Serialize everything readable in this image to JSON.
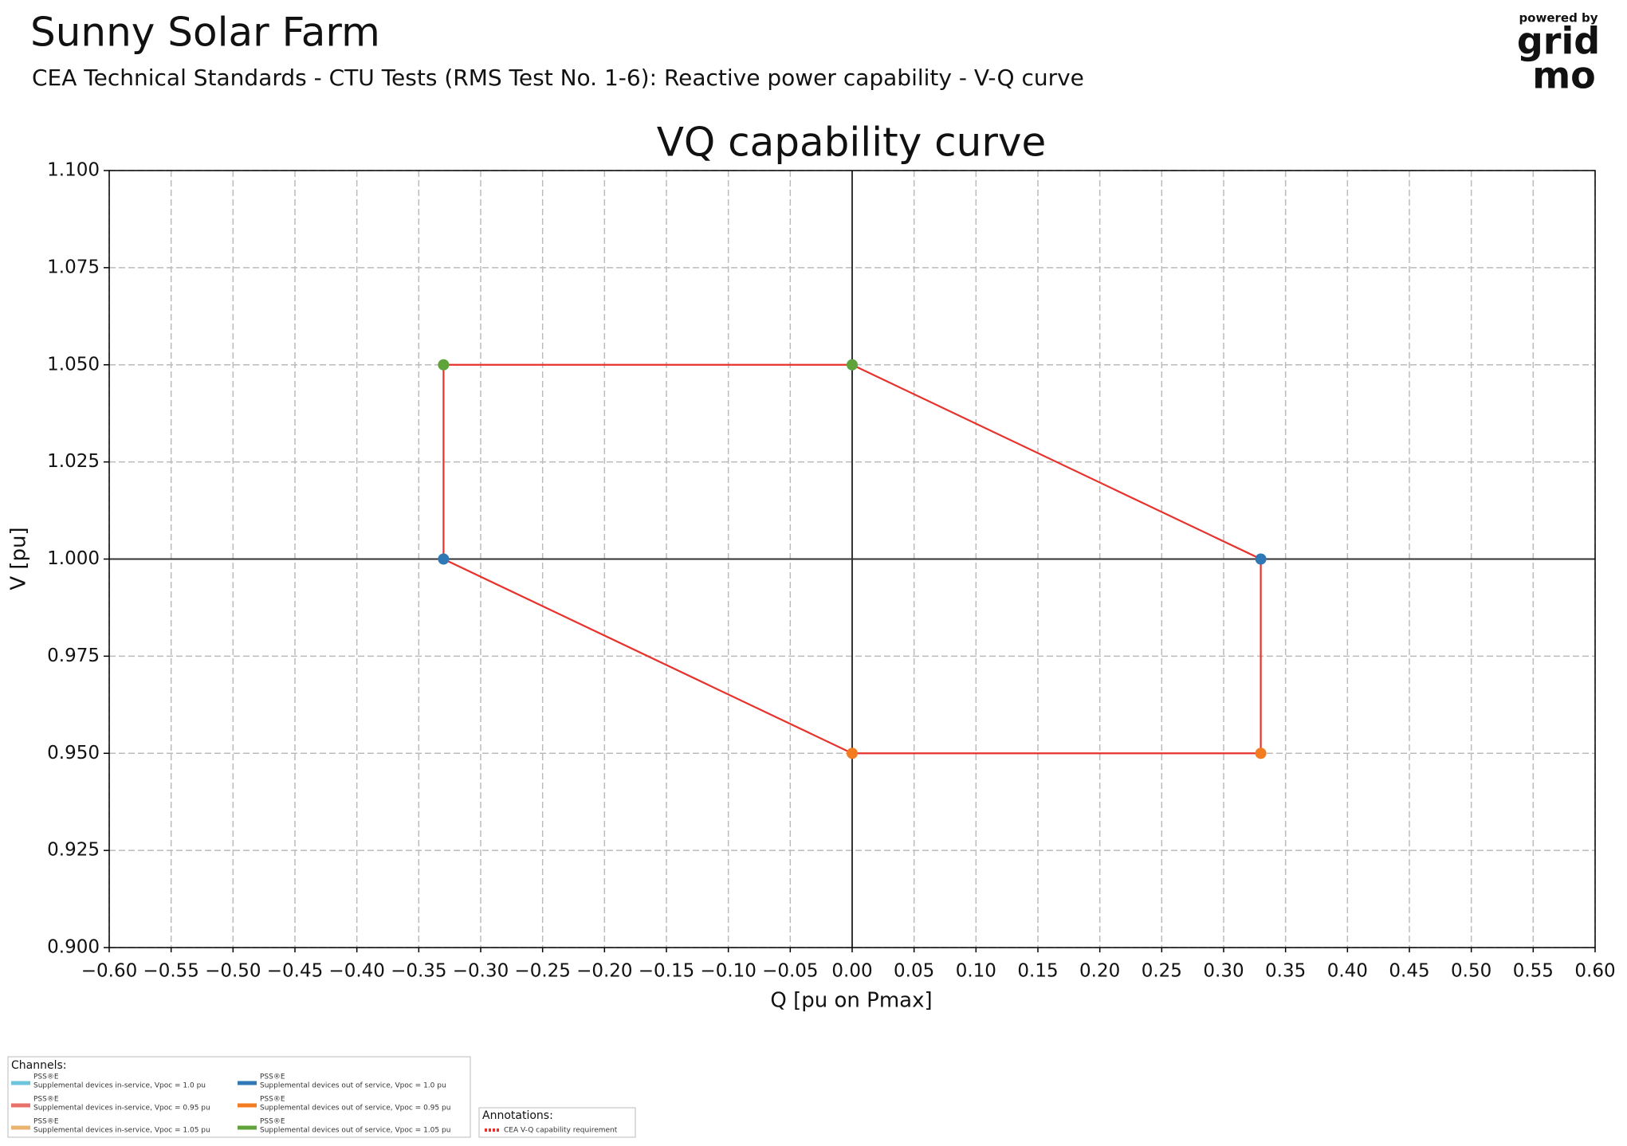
{
  "header": {
    "title": "Sunny Solar Farm",
    "subtitle": "CEA Technical Standards - CTU Tests (RMS Test No. 1-6): Reactive power capability - V-Q curve"
  },
  "logo": {
    "top": "powered by",
    "line1": "grid",
    "line2": "mo"
  },
  "chart_data": {
    "type": "scatter",
    "title": "VQ capability curve",
    "x_label": "Q [pu on Pmax]",
    "y_label": "V [pu]",
    "xlim": [
      -0.6,
      0.6
    ],
    "ylim": [
      0.9,
      1.1
    ],
    "xticks": [
      {
        "value": -0.6,
        "label": "−0.60"
      },
      {
        "value": -0.55,
        "label": "−0.55"
      },
      {
        "value": -0.5,
        "label": "−0.50"
      },
      {
        "value": -0.45,
        "label": "−0.45"
      },
      {
        "value": -0.4,
        "label": "−0.40"
      },
      {
        "value": -0.35,
        "label": "−0.35"
      },
      {
        "value": -0.3,
        "label": "−0.30"
      },
      {
        "value": -0.25,
        "label": "−0.25"
      },
      {
        "value": -0.2,
        "label": "−0.20"
      },
      {
        "value": -0.15,
        "label": "−0.15"
      },
      {
        "value": -0.1,
        "label": "−0.10"
      },
      {
        "value": -0.05,
        "label": "−0.05"
      },
      {
        "value": 0,
        "label": "0.00"
      },
      {
        "value": 0.05,
        "label": "0.05"
      },
      {
        "value": 0.1,
        "label": "0.10"
      },
      {
        "value": 0.15,
        "label": "0.15"
      },
      {
        "value": 0.2,
        "label": "0.20"
      },
      {
        "value": 0.25,
        "label": "0.25"
      },
      {
        "value": 0.3,
        "label": "0.30"
      },
      {
        "value": 0.35,
        "label": "0.35"
      },
      {
        "value": 0.4,
        "label": "0.40"
      },
      {
        "value": 0.45,
        "label": "0.45"
      },
      {
        "value": 0.5,
        "label": "0.50"
      },
      {
        "value": 0.55,
        "label": "0.55"
      },
      {
        "value": 0.6,
        "label": "0.60"
      }
    ],
    "yticks": [
      {
        "value": 0.9,
        "label": "0.900"
      },
      {
        "value": 0.925,
        "label": "0.925"
      },
      {
        "value": 0.95,
        "label": "0.950"
      },
      {
        "value": 0.975,
        "label": "0.975"
      },
      {
        "value": 1.0,
        "label": "1.000"
      },
      {
        "value": 1.025,
        "label": "1.025"
      },
      {
        "value": 1.05,
        "label": "1.050"
      },
      {
        "value": 1.075,
        "label": "1.075"
      },
      {
        "value": 1.1,
        "label": "1.100"
      }
    ],
    "grid": true,
    "hlines": [
      1.0
    ],
    "vlines": [
      0
    ],
    "legend_title": "Channels:",
    "series": [
      {
        "source": "PSS®E",
        "name": "Supplemental devices in-service, Vpoc = 1.0 pu",
        "color": "#6cc5dd",
        "x": [],
        "values": []
      },
      {
        "source": "PSS®E",
        "name": "Supplemental devices in-service, Vpoc = 0.95 pu",
        "color": "#e8726b",
        "x": [],
        "values": []
      },
      {
        "source": "PSS®E",
        "name": "Supplemental devices in-service, Vpoc = 1.05 pu",
        "color": "#e8b470",
        "x": [],
        "values": []
      },
      {
        "source": "PSS®E",
        "name": "Supplemental devices out of service, Vpoc = 1.0 pu",
        "color": "#2f78b6",
        "x": [
          -0.33,
          0.33
        ],
        "values": [
          1.0,
          1.0
        ]
      },
      {
        "source": "PSS®E",
        "name": "Supplemental devices out of service, Vpoc = 0.95 pu",
        "color": "#f47c20",
        "x": [
          0,
          0.33
        ],
        "values": [
          0.95,
          0.95
        ]
      },
      {
        "source": "PSS®E",
        "name": "Supplemental devices out of service, Vpoc = 1.05 pu",
        "color": "#5fa33a",
        "x": [
          -0.33,
          0
        ],
        "values": [
          1.05,
          1.05
        ]
      }
    ],
    "annotations_title": "Annotations:",
    "annotations": [
      {
        "name": "CEA V-Q capability requirement",
        "color": "#e8322c",
        "x": [
          -0.33,
          0,
          0.33,
          0.33,
          0,
          -0.33,
          -0.33
        ],
        "values": [
          1.05,
          1.05,
          1.0,
          0.95,
          0.95,
          1.0,
          1.05
        ]
      }
    ]
  }
}
